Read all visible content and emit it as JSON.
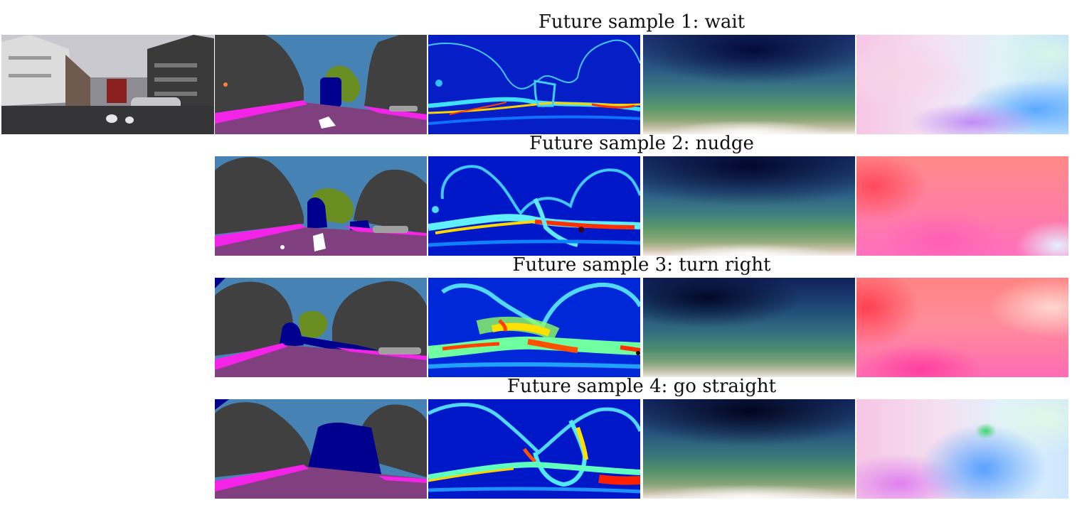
{
  "rows": [
    {
      "title": "Future sample 1: wait"
    },
    {
      "title": "Future sample 2: nudge"
    },
    {
      "title": "Future sample 3: turn right"
    },
    {
      "title": "Future sample 4: go straight"
    }
  ],
  "colors": {
    "building": "#404040",
    "sky": "#4682b4",
    "vehicle": "#00008e",
    "tree": "#6b8e23",
    "sidewalk": "#f423e8",
    "road": "#804080",
    "lane_marking": "#ffffff",
    "misc": "#a0a0a0"
  }
}
